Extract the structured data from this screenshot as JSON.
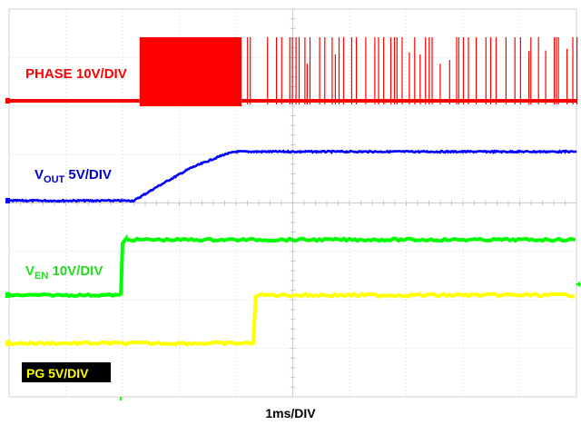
{
  "chart_data": {
    "type": "line",
    "time_scale": "1ms/DIV",
    "x_range_ms": [
      0,
      10
    ],
    "grid": true,
    "grid_divisions": {
      "x": 10,
      "y": 8
    },
    "series": [
      {
        "name_parts": [
          "PHASE 10V/DIV"
        ],
        "color": "#ff0000",
        "points_ms_div": [
          [
            0,
            0
          ],
          [
            2.3,
            0
          ],
          [
            2.3,
            1
          ],
          [
            4.1,
            1
          ],
          [
            4.1,
            0.9
          ],
          [
            10,
            0.9
          ]
        ],
        "note_bursts": [
          [
            2.3,
            4.1,
            "dense"
          ],
          [
            4.1,
            4.3,
            "sparse"
          ],
          [
            4.4,
            10,
            "sparse"
          ]
        ]
      },
      {
        "name_parts": [
          "V",
          "OUT",
          " 5V/DIV"
        ],
        "color": "#0000ff",
        "points_ms_div": [
          [
            0,
            0
          ],
          [
            2.2,
            0
          ],
          [
            2.6,
            0.25
          ],
          [
            3.2,
            0.6
          ],
          [
            3.8,
            0.85
          ],
          [
            4,
            0.9
          ],
          [
            10,
            0.9
          ]
        ]
      },
      {
        "name_parts": [
          "V",
          "EN",
          " 10V/DIV"
        ],
        "color": "#00ff00",
        "points_ms_div": [
          [
            0,
            0
          ],
          [
            1.97,
            0
          ],
          [
            2.0,
            1.1
          ],
          [
            2.1,
            1.18
          ],
          [
            10,
            1.18
          ]
        ]
      },
      {
        "name_parts": [
          "PG 5V/DIV"
        ],
        "color": "#ffff00",
        "points_ms_div": [
          [
            0,
            0
          ],
          [
            4.3,
            0
          ],
          [
            4.35,
            1.0
          ],
          [
            10,
            1.0
          ]
        ]
      }
    ]
  },
  "labels": {
    "phase": "PHASE 10V/DIV",
    "vout_main": "V",
    "vout_sub": "OUT",
    "vout_rest": " 5V/DIV",
    "ven_main": "V",
    "ven_sub": "EN",
    "ven_rest": " 10V/DIV",
    "pg": "PG 5V/DIV",
    "time": "1ms/DIV"
  }
}
